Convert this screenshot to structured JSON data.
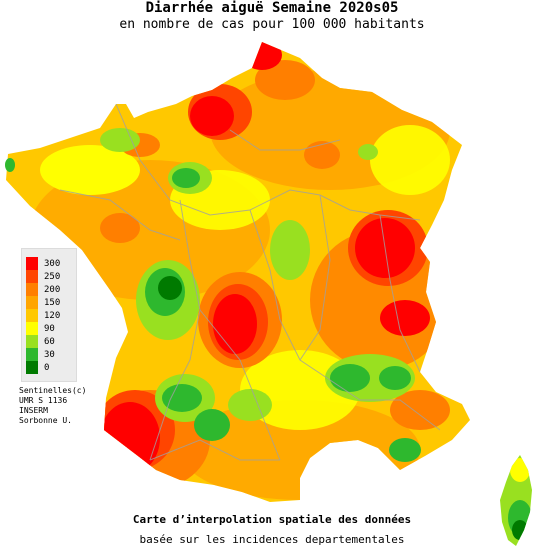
{
  "header": {
    "title": "Diarrhée aiguë Semaine 2020s05",
    "subtitle": "en nombre de cas pour 100 000 habitants"
  },
  "legend": {
    "items": [
      {
        "label": "300",
        "color": "#ff0000"
      },
      {
        "label": "250",
        "color": "#ff4500"
      },
      {
        "label": "200",
        "color": "#ff7f00"
      },
      {
        "label": "150",
        "color": "#ffa500"
      },
      {
        "label": "120",
        "color": "#ffc800"
      },
      {
        "label": "90",
        "color": "#ffff00"
      },
      {
        "label": "60",
        "color": "#99e020"
      },
      {
        "label": "30",
        "color": "#2eb82e"
      },
      {
        "label": "0",
        "color": "#007a00"
      }
    ]
  },
  "credits": {
    "line1": "Sentinelles(c)",
    "line2": "UMR S 1136",
    "line3": "INSERM",
    "line4": "Sorbonne U."
  },
  "footer": {
    "title": "Carte d’interpolation spatiale des données",
    "subtitle": "basée sur les incidences departementales"
  }
}
